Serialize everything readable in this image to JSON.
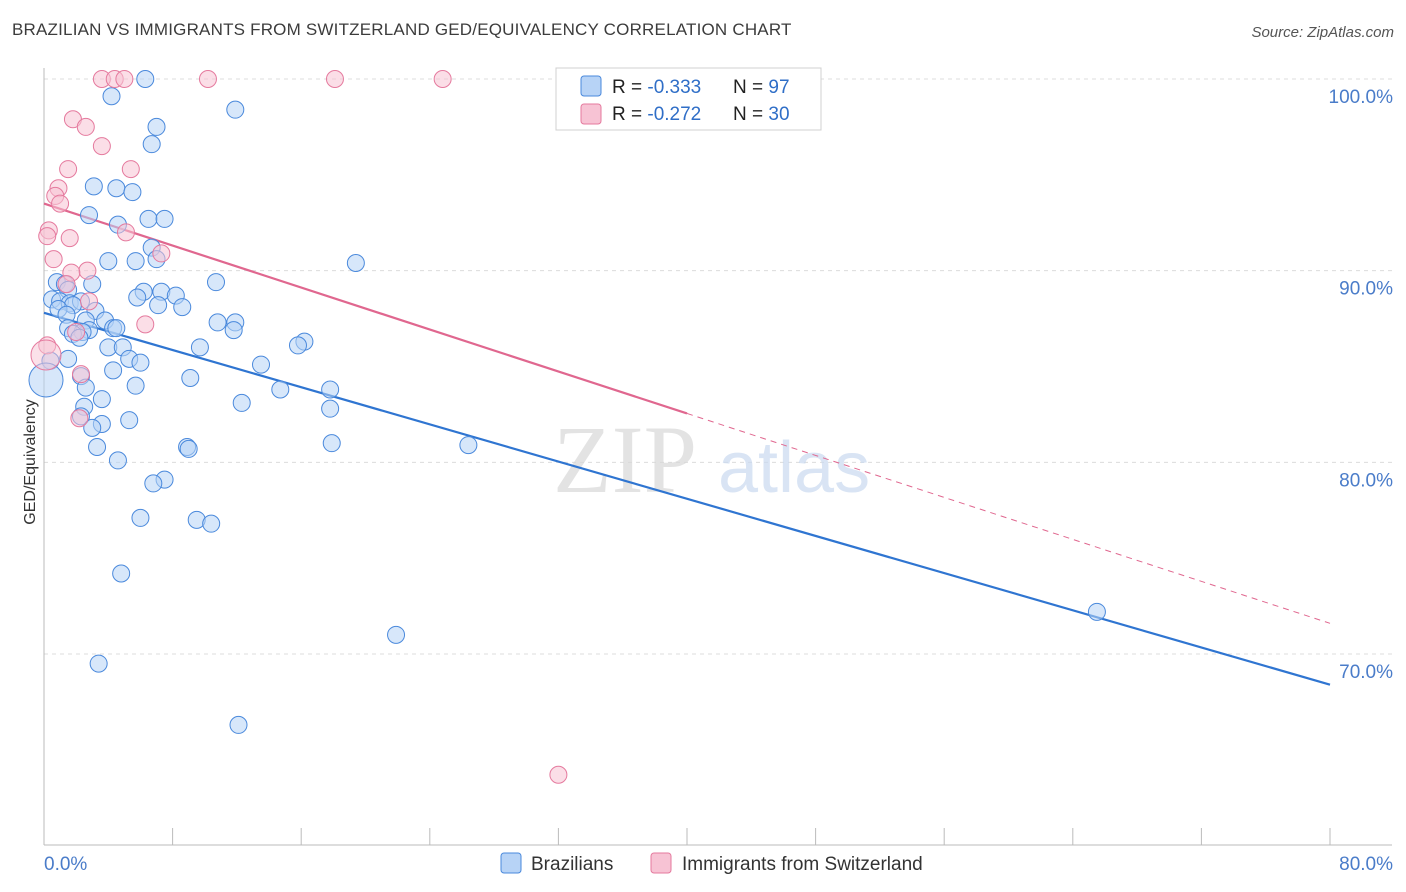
{
  "title": "BRAZILIAN VS IMMIGRANTS FROM SWITZERLAND GED/EQUIVALENCY CORRELATION CHART",
  "source": "Source: ZipAtlas.com",
  "watermark": {
    "zip": "ZIP",
    "atlas": "atlas"
  },
  "colors": {
    "blue": "#4a89dc",
    "blue_fill": "#b7d3f6",
    "blue_line": "#2f75d1",
    "pink": "#e57a9e",
    "pink_fill": "#f7c3d4",
    "pink_line": "#e0678f",
    "tick_label": "#4a7cc9",
    "grid": "#dcdcdc"
  },
  "legend_box": {
    "rows": [
      {
        "r_label": "R = ",
        "r_value": "-0.333",
        "n_label": "N = ",
        "n_value": "97"
      },
      {
        "r_label": "R = ",
        "r_value": "-0.272",
        "n_label": "N = ",
        "n_value": "30"
      }
    ]
  },
  "chart_data": {
    "type": "scatter",
    "title": "BRAZILIAN VS IMMIGRANTS FROM SWITZERLAND GED/EQUIVALENCY CORRELATION CHART",
    "xlabel": "",
    "ylabel": "GED/Equivalency",
    "xlim": [
      0,
      80
    ],
    "ylim": [
      60.2,
      101.5
    ],
    "x_tick_labels": [
      "0.0%",
      "80.0%"
    ],
    "y_ticks": [
      70,
      80,
      90,
      100
    ],
    "y_tick_labels": [
      "70.0%",
      "80.0%",
      "90.0%",
      "100.0%"
    ],
    "grid": true,
    "legend_position": "bottom",
    "series": [
      {
        "name": "Brazilians",
        "color": "#4a89dc",
        "r": -0.333,
        "n": 97,
        "trend": {
          "x1": 0,
          "y1": 87.8,
          "x2": 80,
          "y2": 68.4,
          "dashed_from": null
        },
        "points": [
          [
            6.3,
            100
          ],
          [
            4.2,
            99.1
          ],
          [
            11.9,
            98.4
          ],
          [
            7.0,
            97.5
          ],
          [
            6.7,
            96.6
          ],
          [
            3.1,
            94.4
          ],
          [
            4.5,
            94.3
          ],
          [
            5.5,
            94.1
          ],
          [
            2.8,
            92.9
          ],
          [
            6.5,
            92.7
          ],
          [
            7.5,
            92.7
          ],
          [
            4.6,
            92.4
          ],
          [
            6.7,
            91.2
          ],
          [
            7.0,
            90.6
          ],
          [
            5.7,
            90.5
          ],
          [
            4.0,
            90.5
          ],
          [
            19.4,
            90.4
          ],
          [
            0.8,
            89.4
          ],
          [
            1.3,
            89.3
          ],
          [
            3.0,
            89.3
          ],
          [
            10.7,
            89.4
          ],
          [
            1.5,
            89.0
          ],
          [
            6.2,
            88.9
          ],
          [
            7.3,
            88.9
          ],
          [
            8.2,
            88.7
          ],
          [
            5.8,
            88.6
          ],
          [
            0.5,
            88.5
          ],
          [
            1.0,
            88.4
          ],
          [
            1.6,
            88.3
          ],
          [
            2.3,
            88.4
          ],
          [
            1.8,
            88.2
          ],
          [
            7.1,
            88.2
          ],
          [
            8.6,
            88.1
          ],
          [
            0.9,
            88.0
          ],
          [
            3.2,
            87.9
          ],
          [
            1.4,
            87.7
          ],
          [
            2.6,
            87.4
          ],
          [
            3.8,
            87.4
          ],
          [
            10.8,
            87.3
          ],
          [
            11.9,
            87.3
          ],
          [
            4.3,
            87.0
          ],
          [
            1.5,
            87.0
          ],
          [
            2.8,
            86.9
          ],
          [
            4.5,
            87.0
          ],
          [
            11.8,
            86.9
          ],
          [
            2.4,
            86.8
          ],
          [
            1.8,
            86.7
          ],
          [
            2.2,
            86.5
          ],
          [
            16.2,
            86.3
          ],
          [
            15.8,
            86.1
          ],
          [
            4.0,
            86.0
          ],
          [
            4.9,
            86.0
          ],
          [
            9.7,
            86.0
          ],
          [
            5.3,
            85.4
          ],
          [
            1.5,
            85.4
          ],
          [
            6.0,
            85.2
          ],
          [
            13.5,
            85.1
          ],
          [
            0.4,
            85.3
          ],
          [
            4.3,
            84.8
          ],
          [
            2.3,
            84.5
          ],
          [
            9.1,
            84.4
          ],
          [
            5.7,
            84.0
          ],
          [
            2.6,
            83.9
          ],
          [
            14.7,
            83.8
          ],
          [
            17.8,
            83.8
          ],
          [
            3.6,
            83.3
          ],
          [
            12.3,
            83.1
          ],
          [
            2.5,
            82.9
          ],
          [
            17.8,
            82.8
          ],
          [
            2.3,
            82.4
          ],
          [
            5.3,
            82.2
          ],
          [
            3.6,
            82.0
          ],
          [
            3.0,
            81.8
          ],
          [
            17.9,
            81.0
          ],
          [
            26.4,
            80.9
          ],
          [
            3.3,
            80.8
          ],
          [
            8.9,
            80.8
          ],
          [
            9.0,
            80.7
          ],
          [
            4.6,
            80.1
          ],
          [
            7.5,
            79.1
          ],
          [
            6.8,
            78.9
          ],
          [
            6.0,
            77.1
          ],
          [
            9.5,
            77.0
          ],
          [
            10.4,
            76.8
          ],
          [
            4.8,
            74.2
          ],
          [
            65.5,
            72.2
          ],
          [
            21.9,
            71.0
          ],
          [
            3.4,
            69.5
          ],
          [
            12.1,
            66.3
          ]
        ]
      },
      {
        "name": "Immigrants from Switzerland",
        "color": "#e57a9e",
        "r": -0.272,
        "n": 30,
        "trend": {
          "x1": 0,
          "y1": 93.5,
          "x2": 80,
          "y2": 71.6,
          "dashed_from": 40
        },
        "points": [
          [
            3.6,
            100
          ],
          [
            4.4,
            100
          ],
          [
            5.0,
            100
          ],
          [
            10.2,
            100
          ],
          [
            18.1,
            100
          ],
          [
            24.8,
            100
          ],
          [
            1.8,
            97.9
          ],
          [
            2.6,
            97.5
          ],
          [
            3.6,
            96.5
          ],
          [
            1.5,
            95.3
          ],
          [
            5.4,
            95.3
          ],
          [
            0.9,
            94.3
          ],
          [
            0.7,
            93.9
          ],
          [
            1.0,
            93.5
          ],
          [
            0.3,
            92.1
          ],
          [
            0.2,
            91.8
          ],
          [
            1.6,
            91.7
          ],
          [
            5.1,
            92.0
          ],
          [
            0.6,
            90.6
          ],
          [
            7.3,
            90.9
          ],
          [
            2.7,
            90.0
          ],
          [
            1.7,
            89.9
          ],
          [
            1.4,
            89.3
          ],
          [
            2.8,
            88.4
          ],
          [
            6.3,
            87.2
          ],
          [
            0.2,
            86.1
          ],
          [
            2.0,
            86.8
          ],
          [
            2.3,
            84.6
          ],
          [
            2.2,
            82.3
          ],
          [
            32.0,
            63.7
          ]
        ]
      }
    ]
  }
}
